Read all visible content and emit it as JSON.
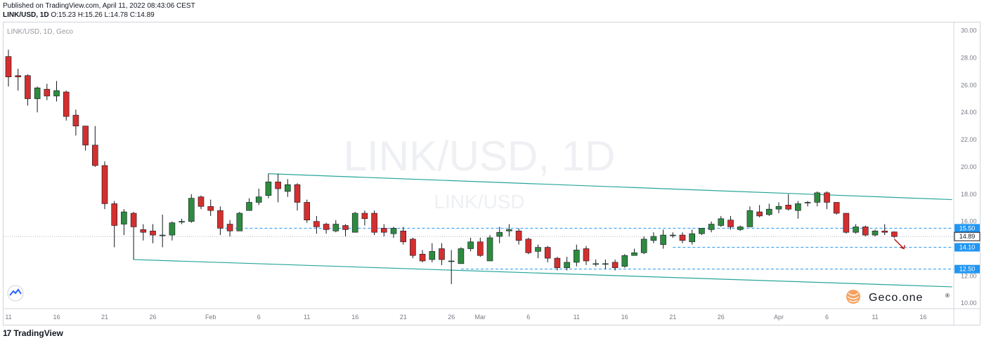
{
  "header": {
    "published": "Published on TradingView.com, April 11, 2022 08:43:06 CEST",
    "symbol": "LINK/USD, 1D",
    "o_label": "O:",
    "o_value": "15.23",
    "h_label": "H:",
    "h_value": "15.26",
    "l_label": "L:",
    "l_value": "14.78",
    "c_label": "C:",
    "c_value": "14.89"
  },
  "chart_label": "LINK/USD, 1D, Geco",
  "watermark": {
    "main": "LINK/USD, 1D",
    "sub": "LINK/USD"
  },
  "brand": {
    "name": "Geco.one",
    "mark": "®"
  },
  "footer": {
    "logo": "17",
    "name": "TradingView"
  },
  "colors": {
    "up": "#26a69a",
    "up_fill": "#2e8b3e",
    "down": "#d32f2f",
    "channel": "#26a69a",
    "level": "#2196f3",
    "label_bg": "#2196f3",
    "current": "#131722"
  },
  "chart_data": {
    "type": "candlestick",
    "title": "LINK/USD, 1D, Geco",
    "ylim": [
      9.6,
      30.6
    ],
    "y_ticks": [
      "30.00",
      "28.00",
      "26.00",
      "24.00",
      "22.00",
      "20.00",
      "18.00",
      "16.00",
      "12.00",
      "10.00"
    ],
    "x_ticks": [
      {
        "label": "11",
        "i": 0
      },
      {
        "label": "16",
        "i": 5
      },
      {
        "label": "21",
        "i": 10
      },
      {
        "label": "26",
        "i": 15
      },
      {
        "label": "Feb",
        "i": 21
      },
      {
        "label": "6",
        "i": 26
      },
      {
        "label": "11",
        "i": 31
      },
      {
        "label": "16",
        "i": 36
      },
      {
        "label": "21",
        "i": 41
      },
      {
        "label": "26",
        "i": 46
      },
      {
        "label": "Mar",
        "i": 49
      },
      {
        "label": "6",
        "i": 54
      },
      {
        "label": "11",
        "i": 59
      },
      {
        "label": "16",
        "i": 64
      },
      {
        "label": "21",
        "i": 69
      },
      {
        "label": "26",
        "i": 74
      },
      {
        "label": "Apr",
        "i": 80
      },
      {
        "label": "6",
        "i": 85
      },
      {
        "label": "11",
        "i": 90
      },
      {
        "label": "16",
        "i": 95
      }
    ],
    "candles": [
      [
        28.1,
        26.6,
        28.6,
        25.9
      ],
      [
        26.7,
        26.6,
        27.2,
        25.6
      ],
      [
        26.7,
        25.0,
        26.8,
        24.5
      ],
      [
        25.0,
        25.8,
        25.9,
        24.0
      ],
      [
        25.7,
        25.2,
        26.1,
        24.9
      ],
      [
        25.2,
        25.6,
        26.3,
        24.8
      ],
      [
        25.5,
        23.7,
        25.6,
        23.4
      ],
      [
        23.8,
        23.0,
        24.2,
        22.3
      ],
      [
        23.0,
        21.6,
        23.0,
        21.2
      ],
      [
        21.6,
        20.1,
        23.0,
        20.0
      ],
      [
        20.1,
        17.3,
        20.4,
        16.9
      ],
      [
        17.3,
        15.7,
        17.5,
        14.1
      ],
      [
        15.8,
        16.7,
        16.9,
        15.0
      ],
      [
        16.6,
        15.6,
        16.7,
        13.2
      ],
      [
        15.4,
        15.2,
        15.8,
        14.6
      ],
      [
        15.3,
        15.0,
        15.8,
        14.4
      ],
      [
        15.0,
        15.0,
        16.5,
        14.1
      ],
      [
        15.0,
        15.9,
        16.0,
        14.6
      ],
      [
        16.0,
        16.0,
        16.2,
        15.8
      ],
      [
        16.0,
        17.7,
        18.0,
        15.9
      ],
      [
        17.8,
        17.1,
        17.9,
        16.9
      ],
      [
        17.1,
        16.8,
        17.6,
        16.4
      ],
      [
        16.8,
        15.5,
        17.1,
        15.0
      ],
      [
        15.8,
        15.3,
        16.1,
        14.9
      ],
      [
        15.3,
        16.6,
        16.7,
        15.3
      ],
      [
        16.8,
        17.4,
        17.7,
        16.9
      ],
      [
        17.4,
        17.8,
        18.4,
        17.2
      ],
      [
        17.9,
        18.9,
        19.5,
        17.7
      ],
      [
        18.9,
        18.4,
        19.5,
        17.4
      ],
      [
        18.2,
        18.7,
        19.1,
        17.8
      ],
      [
        18.7,
        17.4,
        18.8,
        16.8
      ],
      [
        17.4,
        16.1,
        17.6,
        15.9
      ],
      [
        16.0,
        15.6,
        16.4,
        15.1
      ],
      [
        15.8,
        15.4,
        15.9,
        15.1
      ],
      [
        15.3,
        15.8,
        16.1,
        15.2
      ],
      [
        15.7,
        15.4,
        15.8,
        14.9
      ],
      [
        15.2,
        16.6,
        16.7,
        15.3
      ],
      [
        16.6,
        16.2,
        16.8,
        15.7
      ],
      [
        16.6,
        15.2,
        16.8,
        15.0
      ],
      [
        15.5,
        15.2,
        15.8,
        14.9
      ],
      [
        15.1,
        15.5,
        15.6,
        14.8
      ],
      [
        15.3,
        14.5,
        15.6,
        14.3
      ],
      [
        14.7,
        13.5,
        14.8,
        13.3
      ],
      [
        13.6,
        13.1,
        13.9,
        13.0
      ],
      [
        13.2,
        13.8,
        14.4,
        13.0
      ],
      [
        14.0,
        13.2,
        14.4,
        12.8
      ],
      [
        13.1,
        13.1,
        13.9,
        11.4
      ],
      [
        12.9,
        14.0,
        14.1,
        12.9
      ],
      [
        14.0,
        14.5,
        14.8,
        13.8
      ],
      [
        14.5,
        13.5,
        14.8,
        13.4
      ],
      [
        13.1,
        14.8,
        15.0,
        13.1
      ],
      [
        14.9,
        15.2,
        15.6,
        14.4
      ],
      [
        15.3,
        15.4,
        15.8,
        14.9
      ],
      [
        15.3,
        14.6,
        15.5,
        14.3
      ],
      [
        14.7,
        13.7,
        14.8,
        13.6
      ],
      [
        13.8,
        14.1,
        14.3,
        13.3
      ],
      [
        14.1,
        13.3,
        14.2,
        13.0
      ],
      [
        13.3,
        12.6,
        13.4,
        12.4
      ],
      [
        12.6,
        13.0,
        13.4,
        12.4
      ],
      [
        13.0,
        13.9,
        14.3,
        12.7
      ],
      [
        14.0,
        13.1,
        14.2,
        12.8
      ],
      [
        12.9,
        12.9,
        13.2,
        12.7
      ],
      [
        12.9,
        12.9,
        13.2,
        12.5
      ],
      [
        13.0,
        12.6,
        13.2,
        12.4
      ],
      [
        12.7,
        13.5,
        13.6,
        12.6
      ],
      [
        13.5,
        13.7,
        14.0,
        13.5
      ],
      [
        13.7,
        14.7,
        14.9,
        13.6
      ],
      [
        14.6,
        14.9,
        15.2,
        14.4
      ],
      [
        14.3,
        15.0,
        15.4,
        14.0
      ],
      [
        15.0,
        15.0,
        15.2,
        14.8
      ],
      [
        15.0,
        14.6,
        15.2,
        14.4
      ],
      [
        14.5,
        15.1,
        15.4,
        14.3
      ],
      [
        15.1,
        15.5,
        15.5,
        15.0
      ],
      [
        15.4,
        15.8,
        16.0,
        15.2
      ],
      [
        15.7,
        16.2,
        16.4,
        15.6
      ],
      [
        16.1,
        15.6,
        16.4,
        15.4
      ],
      [
        15.4,
        15.6,
        15.7,
        15.3
      ],
      [
        15.6,
        16.8,
        17.1,
        15.6
      ],
      [
        16.7,
        16.4,
        17.2,
        16.3
      ],
      [
        16.5,
        16.9,
        17.3,
        16.4
      ],
      [
        16.9,
        17.1,
        17.4,
        16.6
      ],
      [
        17.2,
        16.9,
        18.0,
        16.8
      ],
      [
        16.8,
        17.3,
        17.5,
        16.2
      ],
      [
        17.4,
        17.4,
        17.5,
        17.1
      ],
      [
        17.4,
        18.1,
        18.2,
        17.1
      ],
      [
        18.1,
        17.4,
        18.2,
        16.9
      ],
      [
        17.4,
        16.6,
        17.4,
        16.5
      ],
      [
        16.6,
        15.2,
        16.6,
        15.1
      ],
      [
        15.2,
        15.6,
        15.8,
        15.1
      ],
      [
        15.6,
        15.0,
        15.7,
        14.9
      ],
      [
        15.0,
        15.3,
        15.4,
        14.9
      ],
      [
        15.3,
        15.2,
        15.8,
        15.0
      ],
      [
        15.23,
        14.89,
        15.26,
        14.78
      ]
    ],
    "levels": [
      {
        "value": 15.5,
        "label": "15.50",
        "from": 22
      },
      {
        "value": 14.1,
        "label": "14.10",
        "from": 69
      },
      {
        "value": 12.5,
        "label": "12.50",
        "from": 47
      }
    ],
    "current": {
      "value": 14.89,
      "label": "14.89"
    },
    "channel": {
      "upper": [
        [
          27,
          19.5
        ],
        [
          98,
          17.6
        ]
      ],
      "lower": [
        [
          13,
          13.2
        ],
        [
          98,
          11.2
        ]
      ]
    },
    "arrow": {
      "from": [
        92,
        14.7
      ],
      "to": [
        93,
        14.0
      ]
    }
  }
}
